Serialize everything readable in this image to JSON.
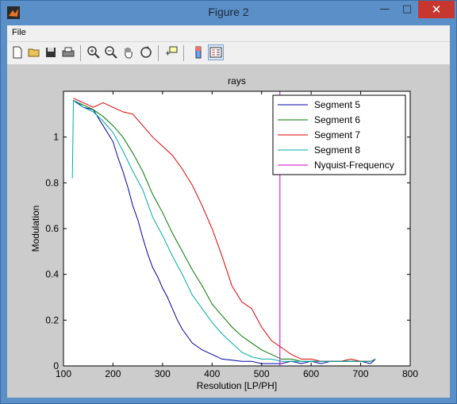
{
  "window": {
    "title": "Figure 2"
  },
  "menu": {
    "file": "File"
  },
  "toolbar": {
    "icons": [
      "new-figure-icon",
      "open-file-icon",
      "save-icon",
      "print-icon",
      "zoom-in-icon",
      "zoom-out-icon",
      "pan-hand-icon",
      "rotate-3d-icon",
      "data-cursor-icon",
      "colorbar-icon",
      "legend-icon"
    ]
  },
  "chart_data": {
    "type": "line",
    "title": "rays",
    "xlabel": "Resolution [LP/PH]",
    "ylabel": "Modulation",
    "xlim": [
      100,
      800
    ],
    "ylim": [
      0,
      1.2
    ],
    "xticks": [
      "100",
      "200",
      "300",
      "400",
      "500",
      "600",
      "700",
      "800"
    ],
    "yticks": [
      "0",
      "0.2",
      "0.4",
      "0.6",
      "0.8",
      "1"
    ],
    "grid": false,
    "legend_position": "top-right",
    "series": [
      {
        "name": "Segment 5",
        "color": "#0000aa",
        "x": [
          120,
          140,
          160,
          180,
          200,
          210,
          220,
          230,
          240,
          250,
          260,
          270,
          280,
          290,
          300,
          310,
          320,
          330,
          340,
          350,
          360,
          380,
          400,
          420,
          440,
          460,
          480,
          500,
          520,
          540,
          560,
          580,
          600,
          620,
          640,
          660,
          680,
          700,
          720,
          730
        ],
        "y": [
          1.16,
          1.13,
          1.12,
          1.05,
          0.98,
          0.91,
          0.85,
          0.78,
          0.7,
          0.64,
          0.56,
          0.49,
          0.43,
          0.39,
          0.34,
          0.3,
          0.25,
          0.2,
          0.16,
          0.13,
          0.1,
          0.07,
          0.05,
          0.03,
          0.025,
          0.02,
          0.02,
          0.01,
          0.01,
          0.01,
          0.02,
          0.01,
          0.02,
          0.01,
          0.02,
          0.02,
          0.02,
          0.02,
          0.01,
          0.03
        ]
      },
      {
        "name": "Segment 6",
        "color": "#007700",
        "x": [
          120,
          140,
          160,
          180,
          200,
          220,
          240,
          260,
          280,
          300,
          320,
          340,
          360,
          380,
          400,
          420,
          440,
          460,
          480,
          500,
          520,
          540,
          560,
          580,
          600,
          620,
          640,
          660,
          680,
          700,
          720,
          730
        ],
        "y": [
          1.16,
          1.14,
          1.12,
          1.09,
          1.05,
          1.0,
          0.93,
          0.85,
          0.75,
          0.67,
          0.58,
          0.5,
          0.42,
          0.35,
          0.27,
          0.22,
          0.17,
          0.13,
          0.1,
          0.07,
          0.05,
          0.03,
          0.03,
          0.02,
          0.02,
          0.02,
          0.02,
          0.02,
          0.02,
          0.02,
          0.02,
          0.03
        ]
      },
      {
        "name": "Segment 7",
        "color": "#dd0000",
        "x": [
          120,
          140,
          160,
          180,
          200,
          220,
          240,
          260,
          280,
          300,
          320,
          340,
          360,
          380,
          400,
          420,
          440,
          460,
          480,
          500,
          520,
          540,
          560,
          580,
          600,
          620,
          640,
          660,
          680,
          700,
          720,
          730
        ],
        "y": [
          1.17,
          1.15,
          1.13,
          1.15,
          1.13,
          1.11,
          1.1,
          1.05,
          1.0,
          0.96,
          0.92,
          0.86,
          0.79,
          0.7,
          0.6,
          0.48,
          0.35,
          0.28,
          0.25,
          0.17,
          0.11,
          0.08,
          0.05,
          0.03,
          0.03,
          0.02,
          0.02,
          0.02,
          0.03,
          0.02,
          0.02,
          0.03
        ]
      },
      {
        "name": "Segment 8",
        "color": "#00aaaa",
        "x": [
          118,
          120,
          130,
          140,
          160,
          180,
          200,
          220,
          240,
          260,
          280,
          300,
          320,
          340,
          360,
          380,
          400,
          420,
          440,
          460,
          480,
          500,
          520,
          540,
          560,
          580,
          600,
          620,
          640,
          660,
          680,
          700,
          720,
          730
        ],
        "y": [
          0.82,
          1.16,
          1.15,
          1.13,
          1.11,
          1.07,
          1.02,
          0.94,
          0.85,
          0.77,
          0.65,
          0.57,
          0.48,
          0.4,
          0.31,
          0.25,
          0.19,
          0.14,
          0.1,
          0.06,
          0.04,
          0.03,
          0.03,
          0.02,
          0.02,
          0.02,
          0.02,
          0.02,
          0.02,
          0.02,
          0.02,
          0.02,
          0.02,
          0.03
        ]
      },
      {
        "name": "Nyquist-Frequency",
        "color": "#cc00cc",
        "x": [
          537,
          537
        ],
        "y": [
          0,
          1.2
        ]
      }
    ]
  }
}
